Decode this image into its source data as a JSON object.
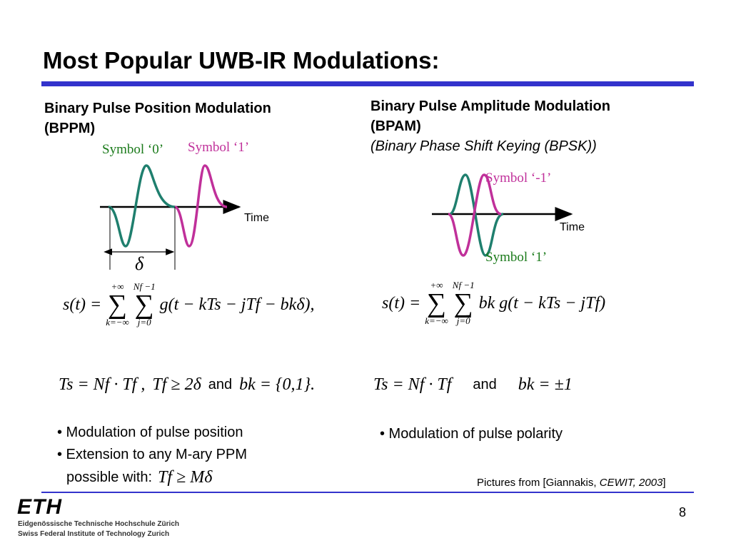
{
  "title": "Most Popular UWB-IR Modulations:",
  "left": {
    "heading": [
      "Binary Pulse Position Modulation",
      "(BPPM)"
    ],
    "symbol0": "Symbol ‘0’",
    "symbol1": "Symbol ‘1’",
    "time": "Time",
    "delta": "δ",
    "formula": {
      "lhs": "s(t) =",
      "sum1": {
        "top": "+∞",
        "sign": "∑",
        "bottom": "k=−∞"
      },
      "sum2": {
        "top": "Nf −1",
        "sign": "∑",
        "bottom": "j=0"
      },
      "body": "g(t − kTs − jTf − bkδ),"
    },
    "conditions": {
      "c1": "Ts = Nf · Tf ,",
      "c2": "Tf ≥ 2δ",
      "and": "and",
      "c3": "bk = {0,1}."
    },
    "bullets": [
      "• Modulation of pulse position",
      "• Extension to any M-ary PPM",
      "possible with:"
    ],
    "bullet_math": "Tf ≥ Mδ"
  },
  "right": {
    "heading": [
      "Binary Pulse Amplitude Modulation",
      "(BPAM)",
      "(Binary Phase Shift Keying (BPSK))"
    ],
    "symbol_neg": "Symbol ‘-1’",
    "symbol_pos": "Symbol ‘1’",
    "time": "Time",
    "formula": {
      "lhs": "s(t) =",
      "sum1": {
        "top": "+∞",
        "sign": "∑",
        "bottom": "k=−∞"
      },
      "sum2": {
        "top": "Nf −1",
        "sign": "∑",
        "bottom": "j=0"
      },
      "body": "bk g(t − kTs − jTf)"
    },
    "conditions": {
      "c1": "Ts = Nf · Tf",
      "and": "and",
      "c2": "bk = ±1"
    },
    "bullets": [
      "• Modulation of pulse polarity"
    ]
  },
  "credit": {
    "prefix": "Pictures from [Giannakis, ",
    "source": "CEWIT, 2003",
    "suffix": "]"
  },
  "footer": {
    "logo": "ETH",
    "line1": "Eidgenössische Technische Hochschule Zürich",
    "line2": "Swiss Federal Institute of Technology Zurich",
    "page": "8"
  }
}
